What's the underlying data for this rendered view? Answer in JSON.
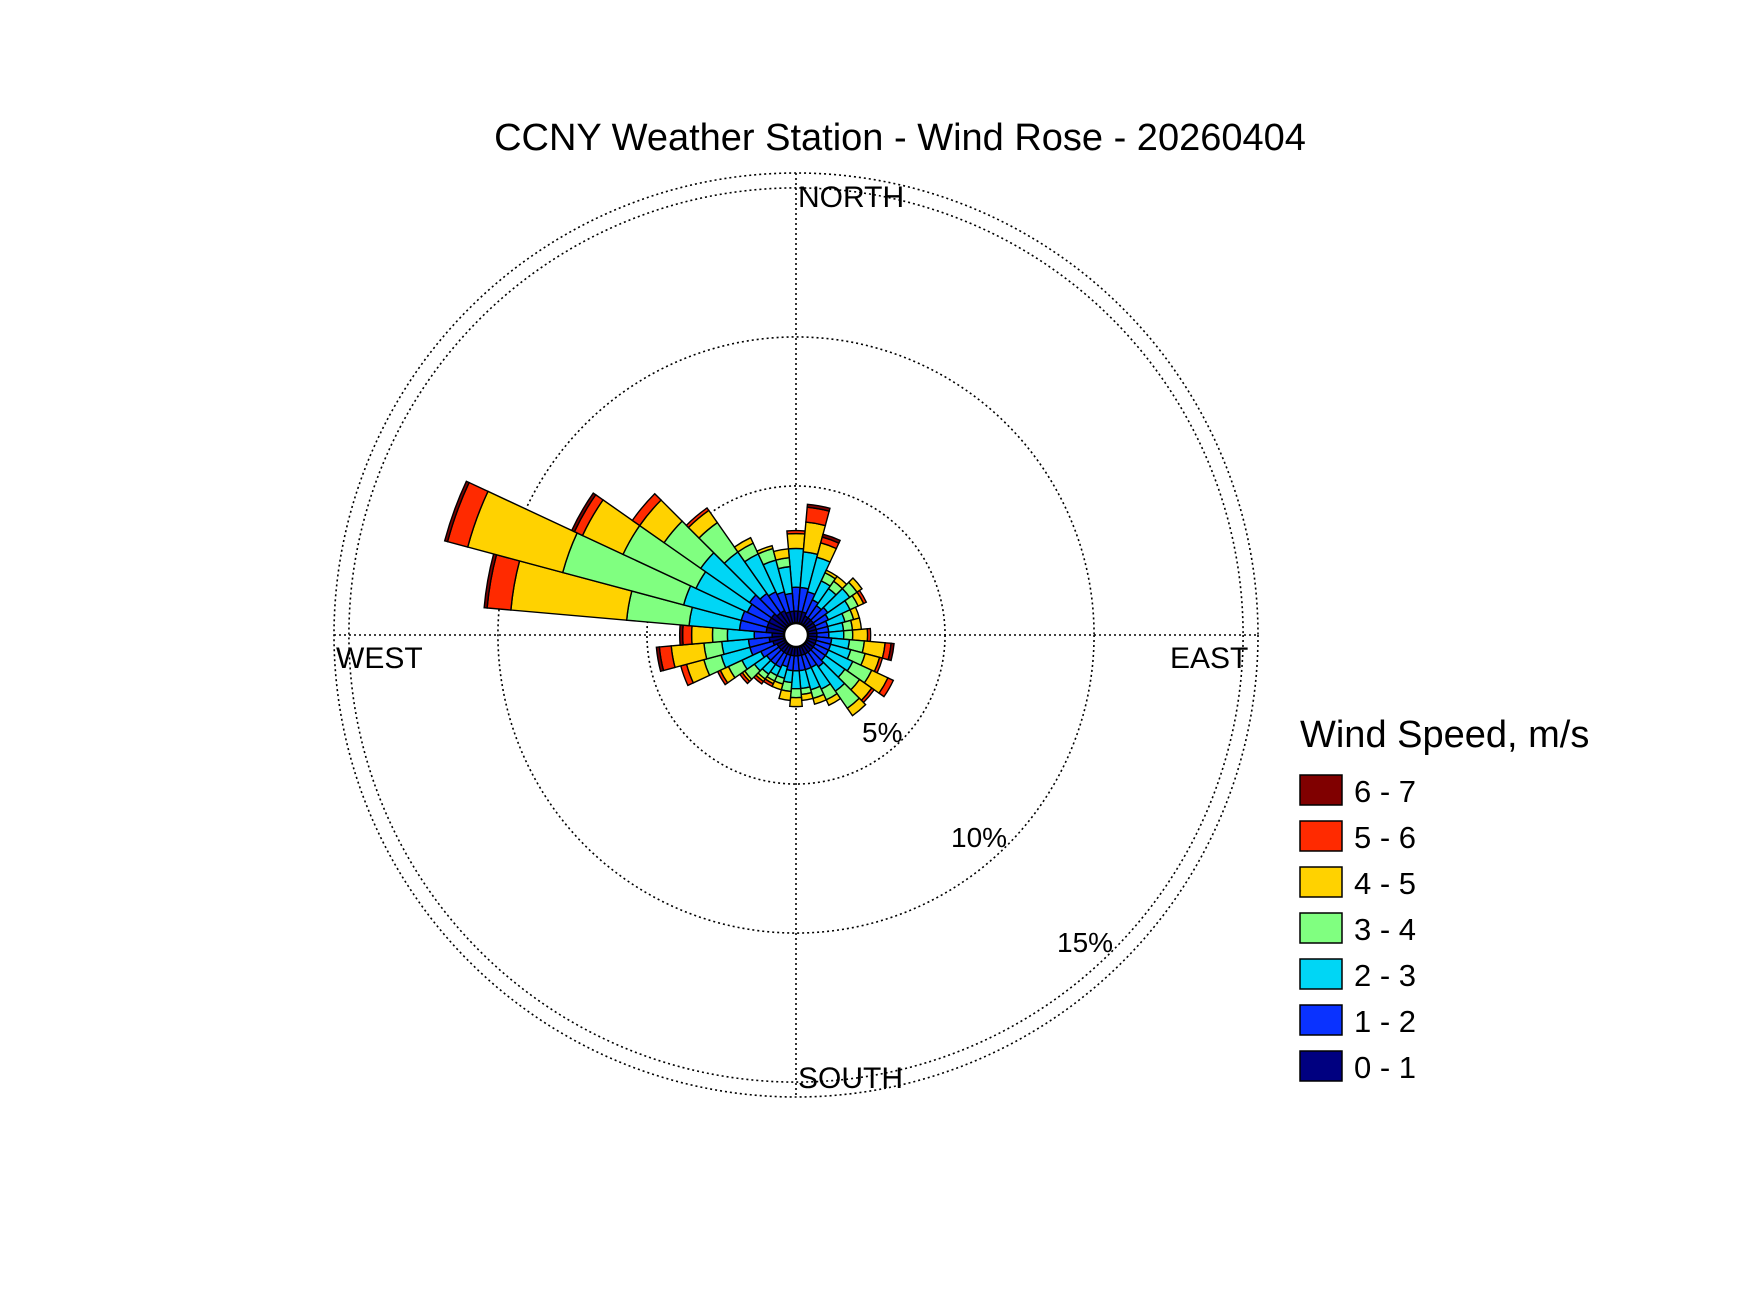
{
  "chart_data": {
    "type": "polar_bar",
    "title": "CCNY Weather Station - Wind Rose - 20260404",
    "direction_labels": {
      "north": "NORTH",
      "east": "EAST",
      "south": "SOUTH",
      "west": "WEST"
    },
    "radial_unit": "%",
    "radial_rings": [
      5,
      10,
      15
    ],
    "radial_max": 15.5,
    "radial_tick_labels": [
      "5%",
      "10%",
      "15%"
    ],
    "legend": {
      "title": "Wind Speed, m/s",
      "placement": "right",
      "bins": [
        {
          "label": "6 - 7",
          "color": "#800000"
        },
        {
          "label": "5 - 6",
          "color": "#ff2a00"
        },
        {
          "label": "4 - 5",
          "color": "#ffd200"
        },
        {
          "label": "3 - 4",
          "color": "#80ff80"
        },
        {
          "label": "2 - 3",
          "color": "#00d6f5"
        },
        {
          "label": "1 - 2",
          "color": "#0a32ff"
        },
        {
          "label": "0 - 1",
          "color": "#000080"
        }
      ]
    },
    "sector_width_deg": 10,
    "sector_stack_order": [
      "0 - 1",
      "1 - 2",
      "2 - 3",
      "3 - 4",
      "4 - 5",
      "5 - 6",
      "6 - 7"
    ],
    "sectors": [
      {
        "direction_deg": 0,
        "cumulative_pct": [
          0.4,
          1.2,
          2.5,
          2.5,
          3.0,
          3.1,
          3.1
        ]
      },
      {
        "direction_deg": 10,
        "cumulative_pct": [
          0.4,
          1.2,
          2.4,
          2.4,
          3.4,
          3.9,
          4.0
        ]
      },
      {
        "direction_deg": 20,
        "cumulative_pct": [
          0.4,
          1.1,
          2.3,
          2.3,
          2.8,
          3.0,
          3.1
        ]
      },
      {
        "direction_deg": 30,
        "cumulative_pct": [
          0.3,
          0.9,
          1.6,
          1.9,
          2.0,
          2.0,
          2.0
        ]
      },
      {
        "direction_deg": 40,
        "cumulative_pct": [
          0.3,
          0.8,
          1.5,
          1.8,
          2.0,
          2.0,
          2.0
        ]
      },
      {
        "direction_deg": 50,
        "cumulative_pct": [
          0.3,
          0.9,
          1.8,
          2.1,
          2.3,
          2.3,
          2.3
        ]
      },
      {
        "direction_deg": 60,
        "cumulative_pct": [
          0.3,
          0.8,
          1.6,
          1.9,
          2.1,
          2.2,
          2.2
        ]
      },
      {
        "direction_deg": 70,
        "cumulative_pct": [
          0.3,
          0.7,
          1.3,
          1.6,
          1.8,
          1.8,
          1.8
        ]
      },
      {
        "direction_deg": 80,
        "cumulative_pct": [
          0.3,
          0.7,
          1.2,
          1.5,
          1.8,
          1.8,
          1.8
        ]
      },
      {
        "direction_deg": 90,
        "cumulative_pct": [
          0.3,
          0.7,
          1.2,
          1.5,
          2.0,
          2.1,
          2.1
        ]
      },
      {
        "direction_deg": 100,
        "cumulative_pct": [
          0.3,
          0.8,
          1.4,
          1.9,
          2.6,
          2.8,
          2.9
        ]
      },
      {
        "direction_deg": 110,
        "cumulative_pct": [
          0.3,
          0.8,
          1.5,
          2.0,
          2.5,
          2.6,
          2.6
        ]
      },
      {
        "direction_deg": 120,
        "cumulative_pct": [
          0.3,
          0.8,
          1.7,
          2.4,
          3.0,
          3.2,
          3.2
        ]
      },
      {
        "direction_deg": 130,
        "cumulative_pct": [
          0.3,
          0.8,
          1.6,
          2.2,
          2.7,
          2.8,
          2.8
        ]
      },
      {
        "direction_deg": 140,
        "cumulative_pct": [
          0.3,
          0.9,
          1.9,
          2.6,
          2.9,
          2.9,
          2.9
        ]
      },
      {
        "direction_deg": 150,
        "cumulative_pct": [
          0.3,
          0.8,
          1.6,
          2.0,
          2.2,
          2.2,
          2.2
        ]
      },
      {
        "direction_deg": 160,
        "cumulative_pct": [
          0.3,
          0.8,
          1.5,
          1.8,
          2.0,
          2.0,
          2.0
        ]
      },
      {
        "direction_deg": 170,
        "cumulative_pct": [
          0.3,
          0.8,
          1.4,
          1.6,
          1.8,
          1.8,
          1.8
        ]
      },
      {
        "direction_deg": 180,
        "cumulative_pct": [
          0.3,
          0.8,
          1.4,
          1.7,
          2.0,
          2.0,
          2.0
        ]
      },
      {
        "direction_deg": 190,
        "cumulative_pct": [
          0.3,
          0.8,
          1.2,
          1.5,
          1.8,
          1.8,
          1.8
        ]
      },
      {
        "direction_deg": 200,
        "cumulative_pct": [
          0.3,
          0.7,
          1.1,
          1.3,
          1.5,
          1.5,
          1.5
        ]
      },
      {
        "direction_deg": 210,
        "cumulative_pct": [
          0.3,
          0.8,
          1.1,
          1.3,
          1.4,
          1.5,
          1.5
        ]
      },
      {
        "direction_deg": 220,
        "cumulative_pct": [
          0.3,
          0.8,
          1.2,
          1.4,
          1.5,
          1.6,
          1.6
        ]
      },
      {
        "direction_deg": 230,
        "cumulative_pct": [
          0.3,
          0.8,
          1.3,
          1.7,
          1.8,
          1.9,
          1.9
        ]
      },
      {
        "direction_deg": 240,
        "cumulative_pct": [
          0.3,
          0.9,
          1.6,
          2.1,
          2.4,
          2.5,
          2.5
        ]
      },
      {
        "direction_deg": 250,
        "cumulative_pct": [
          0.4,
          1.2,
          2.2,
          2.8,
          3.4,
          3.6,
          3.6
        ]
      },
      {
        "direction_deg": 260,
        "cumulative_pct": [
          0.5,
          1.2,
          2.1,
          2.7,
          3.8,
          4.2,
          4.3
        ]
      },
      {
        "direction_deg": 270,
        "cumulative_pct": [
          0.4,
          1.0,
          1.9,
          2.4,
          3.1,
          3.4,
          3.5
        ]
      },
      {
        "direction_deg": 280,
        "cumulative_pct": [
          0.6,
          1.5,
          3.2,
          5.3,
          9.2,
          10.0,
          10.1
        ]
      },
      {
        "direction_deg": 290,
        "cumulative_pct": [
          0.6,
          1.5,
          3.5,
          7.7,
          11.0,
          11.7,
          11.8
        ]
      },
      {
        "direction_deg": 300,
        "cumulative_pct": [
          0.6,
          1.4,
          3.3,
          6.0,
          7.5,
          7.8,
          7.9
        ]
      },
      {
        "direction_deg": 310,
        "cumulative_pct": [
          0.6,
          1.5,
          3.5,
          5.0,
          6.0,
          6.3,
          6.3
        ]
      },
      {
        "direction_deg": 320,
        "cumulative_pct": [
          0.5,
          1.3,
          3.0,
          4.2,
          4.7,
          4.8,
          4.8
        ]
      },
      {
        "direction_deg": 330,
        "cumulative_pct": [
          0.5,
          1.2,
          2.6,
          3.0,
          3.2,
          3.2,
          3.2
        ]
      },
      {
        "direction_deg": 340,
        "cumulative_pct": [
          0.4,
          1.1,
          2.2,
          2.6,
          2.7,
          2.7,
          2.7
        ]
      },
      {
        "direction_deg": 350,
        "cumulative_pct": [
          0.4,
          1.0,
          1.9,
          2.2,
          2.5,
          2.5,
          2.5
        ]
      }
    ]
  }
}
